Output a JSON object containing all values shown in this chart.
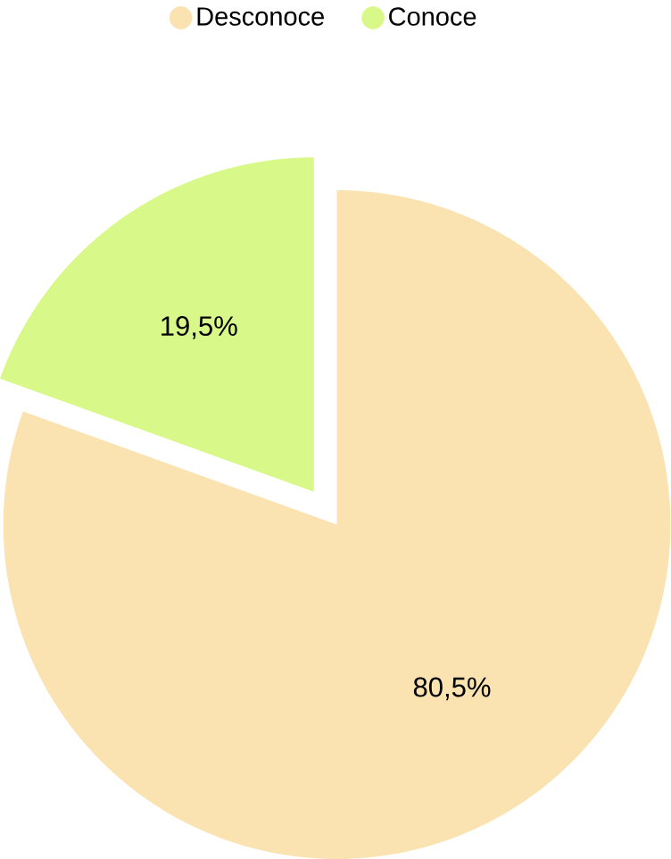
{
  "chart_data": {
    "type": "pie",
    "categories": [
      "Desconoce",
      "Conoce"
    ],
    "values": [
      80.5,
      19.5
    ],
    "colors": [
      "#fae3b0",
      "#d9f88a"
    ],
    "value_labels": [
      "80,5%",
      "19,5%"
    ],
    "legend": "top"
  }
}
